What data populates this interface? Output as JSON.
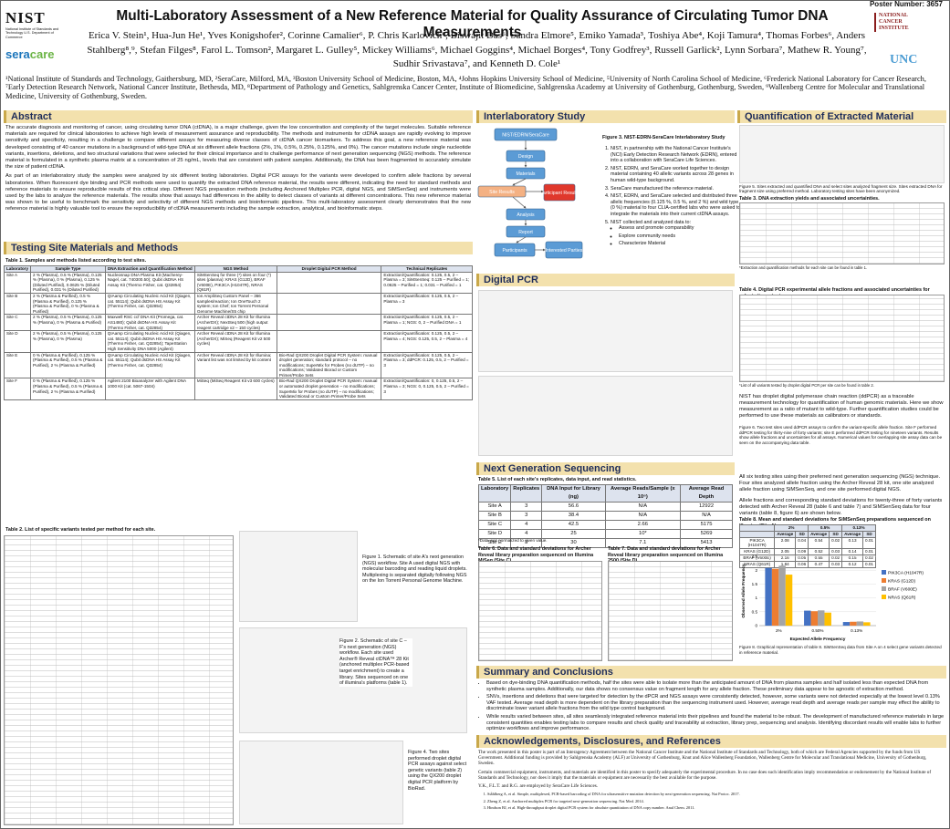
{
  "header": {
    "poster_number": "Poster Number: 3657",
    "title": "Multi-Laboratory Assessment of a New Reference Material for Quality Assurance of Circulating Tumor DNA Measurements",
    "authors": "Erica V. Stein¹, Hua-Jun He¹, Yves Konigshofer², Corinne Camalier⁶, P. Chris Karlovich⁶, Biswajit Das⁶, Sandra Elmore⁵, Emiko Yamada³, Toshiya Abe⁴, Koji Tamura⁴, Thomas Forbes⁶, Anders Stahlberg⁸,⁹, Stefan Filges⁸, Farol L. Tomson², Margaret L. Gulley⁵, Mickey Williams⁶, Michael Goggins⁴, Michael Borges⁴, Tony Godfrey³, Russell Garlick², Lynn Sorbara⁷, Mathew R. Young⁷, Sudhir Srivastava⁷, and Kenneth D. Cole¹",
    "affiliations": "¹National Institute of Standards and Technology, Gaithersburg, MD, ²SeraCare, Milford, MA, ³Boston University School of Medicine, Boston, MA, ⁴Johns Hopkins University School of Medicine, ⁵University of North Carolina School of Medicine, ⁶Frederick National Laboratory for Cancer Research, ⁷Early Detection Research Network, National Cancer Institute, Bethesda, MD, ⁸Department of Pathology and Genetics, Sahlgrenska Cancer Center, Institute of Biomedicine, Sahlgrenska Academy at University of Gothenburg, Gothenburg, Sweden, ⁹Wallenberg Centre for Molecular and Translational Medicine, University of Gothenburg, Sweden.",
    "logos": {
      "nist": "NIST",
      "nist_sub": "National Institute of Standards and Technology U.S. Department of Commerce",
      "seracare": "sera",
      "seracare2": "care",
      "nci": "NATIONAL CANCER INSTITUTE",
      "unc": "UNC"
    }
  },
  "abstract": {
    "heading": "Abstract",
    "paragraphs": [
      "The accurate diagnosis and monitoring of cancer, using circulating tumor DNA (ctDNA), is a major challenge, given the low concentration and complexity of the target molecules. Suitable reference materials are required for clinical laboratories to achieve high levels of measurement assurance and reproducibility. The methods and instruments for ctDNA assays are rapidly evolving to improve sensitivity and specificity, resulting in a challenge to compare different assays for measuring diverse classes of ctDNA cancer biomarkers. To address this goal, a new reference material was developed consisting of 40 cancer mutations in a background of wild-type DNA at six different allele fractions (2%, 1%, 0.5%, 0.25%, 0.125%, and 0%). The cancer mutations include single nucleotide variants, insertions, deletions, and two structural variations that were selected for their clinical importance and to challenge performance of next generation sequencing (NGS) methods. The reference material is formulated in a synthetic plasma matrix at a concentration of 25 ng/mL, levels that are consistent with patient samples. Additionally, the DNA has been fragmented to accurately simulate the size of patient ctDNA.",
      "As part of an interlaboratory study the samples were analyzed by six different testing laboratories. Digital PCR assays for the variants were developed to confirm allele fractions by several laboratories. When fluorescent dye binding and PCR methods were used to quantify the extracted DNA reference material, the results were different, indicating the need for standard methods and reference materials to ensure reproducible results of this critical step. Different NGS preparation methods (including Anchored Multiplex PCR, digital NGS, and SiMSenSeq) and instruments were used by the labs to analyze the reference materials. The results show that assays had differences in the ability to detect classes of variants at different concentrations. This new reference material was shown to be useful to benchmark the sensitivity and selectivity of different NGS methods and bioinformatic pipelines. This multi-laboratory assessment clearly demonstrates that the new reference material is highly valuable tool to ensure the reproducibility of ctDNA measurements including the sample extraction, analytical, and bioinformatic steps."
    ]
  },
  "methods": {
    "heading": "Testing Site Materials and Methods",
    "table1": {
      "caption": "Table 1.  Samples and methods listed according to test sites.",
      "columns": [
        "Laboratory",
        "Sample Type",
        "DNA Extraction and Quantification Method",
        "NGS Method",
        "Droplet Digital PCR Method",
        "Technical Replicates"
      ],
      "rows": [
        [
          "Site A",
          "2 % (Plasma), 0.5 % (Plasma), 0.125 % (Plasma), 0 % (Plasma), 0.125 % (Diluted Purified), 0.0625 % (Diluted Purified), 0.031 % (Diluted Purified)",
          "Nucleosnap DNA Plasma Kit (Macherey-Nagel, cat. 740300.50); Qubit dsDNA HS Assay Kit (Thermo Fisher, cat. Q32854)",
          "SiMSenSeq for three (*) sites on four (*) sites (plasma): KRAS (G12D), BRAF (V600E), PIK3CA (H1047R), NRAS (Q61R)",
          null,
          "Extraction/Quantification: 0.125, 0.5, 2 – Plasma = 3; SiMSenSeq: 0.125 – Purified = 1; 0.0625 – Purified = 1; 0.031 – Purified = 1"
        ],
        [
          "Site B",
          "2 % (Plasma & Purified), 0.5 % (Plasma & Purified), 0.125 % (Plasma & Purified), 0 % (Plasma & Purified)",
          "QIAamp Circulating Nucleic Acid Kit (Qiagen, cat. 55114); Qubit dsDNA HS Assay Kit (Thermo Fisher, cat. Q32854)",
          "Ion AmpliSeq Custom Panel – 366 samples/reaction; Ion OneTouch 2 system; Ion Chef; Ion Torrent Personal Genome Machine/S5 chip",
          null,
          "Extraction/Quantification: 0.125, 0.5, 2 – Plasma = 3"
        ],
        [
          "Site C",
          "2 % (Plasma), 0.5 % (Plasma), 0.125 % (Plasma), 0 % (Plasma & Purified)",
          "Maxwell RSC ccf DNA Kit (Promega, cat. AS1480); Qubit dsDNA HS Assay Kit (Thermo Fisher, cat. Q32854)",
          "Archer Reveal ctDNA 28 Kit for Illumina (ArcherDX); NextSeq 500 (high output reagent cartridge v2 – 150 cycles)",
          null,
          "Extraction/Quantification: 0.125, 0.5, 2 – Plasma = 1; NGS: 0, 2 – Purified DNA = 1"
        ],
        [
          "Site D",
          "2 % (Plasma), 0.5 % (Plasma), 0.125 % (Plasma), 0 % (Plasma)",
          "QIAamp Circulating Nucleic Acid Kit (Qiagen, cat. 55114); Qubit dsDNA HS Assay Kit (Thermo Fisher, cat. Q32854); TapeStation High Sensitivity DNA 5000 (Agilent)",
          "Archer Reveal ctDNA 28 Kit for Illumina (ArcherDX); MiSeq (Reagent Kit v2 500 cycles)",
          null,
          "Extraction/Quantification: 0.125, 0.5, 2 – Plasma = 4; NGS: 0.125, 0.5, 2 – Plasma = 4"
        ],
        [
          "Site E",
          "0 % (Plasma & Purified), 0.125 % (Plasma & Purified), 0.5 % (Plasma & Purified), 2 % (Plasma & Purified)",
          "QIAamp Circulating Nucleic Acid Kit (Qiagen, cat. 55114); Qubit dsDNA HS Assay Kit (Thermo Fisher, cat. Q32854)",
          "Archer Reveal ctDNA 28 Kit for Illumina; Variant list was not limited by kit content",
          "Bio-Rad QX200 Droplet Digital PCR System: manual droplet generation; standard protocol – no modifications; SuperMix for Probes (no dUTP) – no modifications; Validated Biorad or Custom Primer/Probe Sets",
          "Extraction/Quantification: 0.125, 0.5, 2 – Plasma = 3; ddPCR: 0.125, 0.5, 2 – Purified = 3"
        ],
        [
          "Site F",
          "0 % (Plasma & Purified), 0.125 % (Plasma & Purified), 0.5 % (Plasma & Purified), 2 % (Plasma & Purified)",
          "Agilent 2100 Bioanalyzer with Agilent DNA 1000 Kit (cat. 5067-1504)",
          "MiSeq (MiSeq Reagent Kit v3 600 cycles)",
          "Bio-Rad QX200 Droplet Digital PCR System: manual or automated droplet generation – no modifications; SuperMix for Probes (no dUTP) – no modifications; Validated Biorad or Custom Primer/Probe Sets",
          "Extraction/Quantification: 0, 0.125, 0.5, 2 – Plasma = 3; NGS: 0, 0.125, 0.5, 2 – Purified = 3"
        ]
      ]
    },
    "table2": {
      "caption": "Table 2.  List of specific variants tested per method for each site."
    },
    "figures": [
      "Figure 1. Schematic of site A's next generation (NGS) workflow. Site A used digital NGS with molecular barcoding and reading liquid droplets. Multiplexing is separated digitally following NGS on the Ion Torrent Personal Genome Machine.",
      "Figure 2. Schematic of site C – F's next generation (NGS) workflow. Each site used Archer® Reveal ctDNA™ 28 Kit (anchored multiplex PCR-based target enrichment) to create a library. Sites sequenced on one of illumina's platforms (table 1).",
      "Figure 4. Two sites performed droplet digital PCR assays against select genetic variants (table 2) using the QX200 droplet digital PCR platform by BioRad."
    ]
  },
  "interlab": {
    "heading": "Interlaboratory Study",
    "flow": {
      "top": "NIST/EDRN/SeraCare",
      "design": "Design",
      "materials": "Materials",
      "site_results": "Site Results",
      "participant_results": "Participant Results",
      "analysis": "Analysis",
      "report": "Report",
      "participants": "Participants",
      "interested": "Interested Parties"
    },
    "caption": "Figure 3. NIST-EDRN-SeraCare Interlaboratory Study",
    "items": [
      "NIST, in partnership with the National Cancer Institute's (NCI) Early Detection Research Network (EDRN), entered into a collaboration with SeraCare Life Sciences.",
      "NIST, EDRN, and SeraCare worked together to design material containing 40 allelic variants across 28 genes in human wild-type background.",
      "SeraCare manufactured the reference material.",
      "NIST, EDRN, and SeraCare selected and distributed three allelic frequencies (0.125 %, 0.5 %, and 2 %) and wild type (0 %) material to four CLIA-certified labs who were asked to integrate the materials into their current ctDNA assays.",
      "NIST collected and analyzed data to:"
    ],
    "subitems": [
      "Assess and promote comparability",
      "Explore community needs",
      "Characterize Material"
    ]
  },
  "quantification": {
    "heading": "Quantification of Extracted Material",
    "caption": "Figure 5. Sites extracted and quantified DNA and select sites analyzed fragment size. Sites extracted DNA for fragment size using preferred method. Laboratory testing sites have been anonymized.",
    "table_caption": "Table 3.  DNA extraction yields and associated uncertainties.",
    "table_note": "*Extraction and quantification methods for each site can be found in table 1."
  },
  "dpcr": {
    "heading": "Digital PCR",
    "table_caption": "Table 4.  Digital PCR experimental allele fractions and associated uncertainties for select site variants.",
    "table_note": "*List of all variants tested by droplet digital PCR per site can be found in table 2.",
    "text": "NIST has droplet digital polymerase chain reaction (ddPCR) as a traceable measurement technology for quantification of human genomic materials. Here we show measurement as a ratio of mutant to wild-type. Further quantification studies could be performed to use these materials as calibrators or standards.",
    "figure_caption": "Figure 6. Two test sites used ddPCR assays to confirm the variant-specific allele fraction. Site F performed ddPCR testing for thirty-nine of forty variants; site E performed ddPCR testing for nineteen variants. Results show allele fractions and uncertainties for all assays. Numerical values for overlapping site assay data can be seen on the accompanying data table."
  },
  "ngs": {
    "heading": "Next Generation Sequencing",
    "table5": {
      "caption": "Table 5.  List of each site's replicates, data input, and read statistics.",
      "columns": [
        "Laboratory",
        "Replicates",
        "DNA Input for Library (ng)",
        "Average Reads/Sample (x 10⁶)",
        "Average Read Depth"
      ],
      "rows": [
        [
          "Site A",
          3,
          56.6,
          "N/A",
          12922
        ],
        [
          "Site B",
          3,
          38.4,
          "N/A",
          "N/A"
        ],
        [
          "Site C",
          4,
          42.5,
          2.66,
          5175
        ],
        [
          "Site D",
          4,
          25,
          "10*",
          5269
        ],
        [
          "Site E",
          3,
          30,
          7.1,
          5413
        ]
      ],
      "note": "*Data was normalized to given value."
    },
    "table6_caption": "Table 6.  Data and standard deviations for Archer Reveal library preparation sequenced on Illumina MiSeq (Site C).",
    "table7_caption": "Table 7.  Data and standard deviations for Archer Reveal library preparation sequenced on Illumina 2500 (Site D).",
    "text": [
      "All six testing sites using their preferred next generation sequencing (NGS) technique. Four sites analyzed allele fraction using the Archer Reveal 28 kit, one site analyzed allele fraction using SiMSenSeq, and one site performed digital NGS.",
      "Allele fractions and corresponding standard deviations for twenty-three of forty variants detected with Archer Reveal 28 (table 6 and table 7) and SiMSenSeq data for four variants (table 8, figure 6) are shown below."
    ],
    "table8": {
      "caption": "Table 8.  Mean and standard deviations for SiMSenSeq preparations sequenced on Illumina (Site A).",
      "levels": [
        "2%",
        "0.5%",
        "0.13%"
      ],
      "subcolumns": [
        "Average",
        "SD"
      ],
      "rows": [
        {
          "name": "PIK3CA (H1047R)",
          "values": [
            2.08,
            0.04,
            0.54,
            0.02,
            0.13,
            0.01
          ]
        },
        {
          "name": "KRAS (G12D)",
          "values": [
            2.05,
            0.09,
            0.52,
            0.03,
            0.14,
            0.01
          ]
        },
        {
          "name": "BRAF (V600E)",
          "values": [
            2.16,
            0.05,
            0.55,
            0.02,
            0.15,
            0.02
          ]
        },
        {
          "name": "NRAS (Q61R)",
          "values": [
            1.84,
            0.06,
            0.47,
            0.03,
            0.12,
            0.01
          ]
        }
      ]
    }
  },
  "chart_data": {
    "type": "bar",
    "caption": "Figure 8. Graphical representation of table 8. SiMSenSeq data from Site A on 4 select gene variants detected in reference material.",
    "x_label": "Expected Allele Frequency",
    "y_label": "Observed Allele Frequency",
    "categories": [
      "2%",
      "0.50%",
      "0.13%"
    ],
    "series": [
      {
        "name": "PIK3CA (H1047R)",
        "color": "#4472c4",
        "values": [
          2.08,
          0.54,
          0.13
        ]
      },
      {
        "name": "KRAS (G12D)",
        "color": "#ed7d31",
        "values": [
          2.05,
          0.52,
          0.14
        ]
      },
      {
        "name": "BRAF (V600E)",
        "color": "#a5a5a5",
        "values": [
          2.16,
          0.55,
          0.15
        ]
      },
      {
        "name": "NRAS (Q61R)",
        "color": "#ffc000",
        "values": [
          1.84,
          0.47,
          0.12
        ]
      }
    ],
    "ylim": [
      0,
      2.5
    ],
    "yticks": [
      0,
      0.5,
      1,
      1.5,
      2,
      2.5
    ],
    "legend": "right"
  },
  "summary": {
    "heading": "Summary and Conclusions",
    "bullets": [
      "Based on dye-binding DNA quantification methods, half the sites were able to isolate more than the anticipated amount of DNA from plasma samples and half isolated less than expected DNA from synthetic plasma samples. Additionally, our data shows no consensus value on fragment length for any allele fraction. These preliminary data appear to be agnostic of extraction method.",
      "SNVs, insertions and deletions that were targeted for detection by the dPCR and NGS assays were consistently detected, however, some variants were not detected especially at the lowest level 0.13% VAF tested. Average read depth is more dependent on the library preparation than the sequencing instrument used. However, average read depth and average reads per sample may effect the ability to discriminate lower variant allele fractions from the wild type control background.",
      "While results varied between sites, all sites seamlessly integrated reference material into their pipelines and found the material to be robust. The development of manufactured reference materials in large consistent quantities enables testing labs to compare results and check quality and traceability at extraction, library prep, sequencing and analysis. Identifying discordant results will enable labs to further optimize workflows and improve performance."
    ]
  },
  "acknowledgements": {
    "heading": "Acknowledgements, Disclosures, and References",
    "paragraphs": [
      "The work presented in this poster is part of an Interagency Agreement between the National Cancer Institute and the National Institute of Standards and Technology, both of which are Federal Agencies supported by the funds from US Government. Additional funding is provided by Sahlgrenska Academy (ALF) at University of Gothenburg, Knut and Alice Wallenberg Foundation, Wallenberg Centre for Molecular and Translational Medicine, University of Gothenburg, Sweden.",
      "Certain commercial equipment, instruments, and materials are identified in this poster to specify adequately the experimental procedure. In no case does such identification imply recommendation or endorsement by the National Institute of Standards and Technology, nor does it imply that the materials or equipment are necessarily the best available for the purpose.",
      "Y.K., F.L.T. and R.G. are employed by SeraCare Life Sciences."
    ],
    "references": [
      "Ståhlberg A, et al. Simple, multiplexed, PCR-based barcoding of DNA for ultrasensitive mutation detection by next-generation sequencing. Nat Protoc. 2017.",
      "Zheng Z, et al. Anchored multiplex PCR for targeted next-generation sequencing. Nat Med. 2014.",
      "Hindson BJ, et al. High-throughput droplet digital PCR system for absolute quantitation of DNA copy number. Anal Chem. 2011."
    ]
  }
}
